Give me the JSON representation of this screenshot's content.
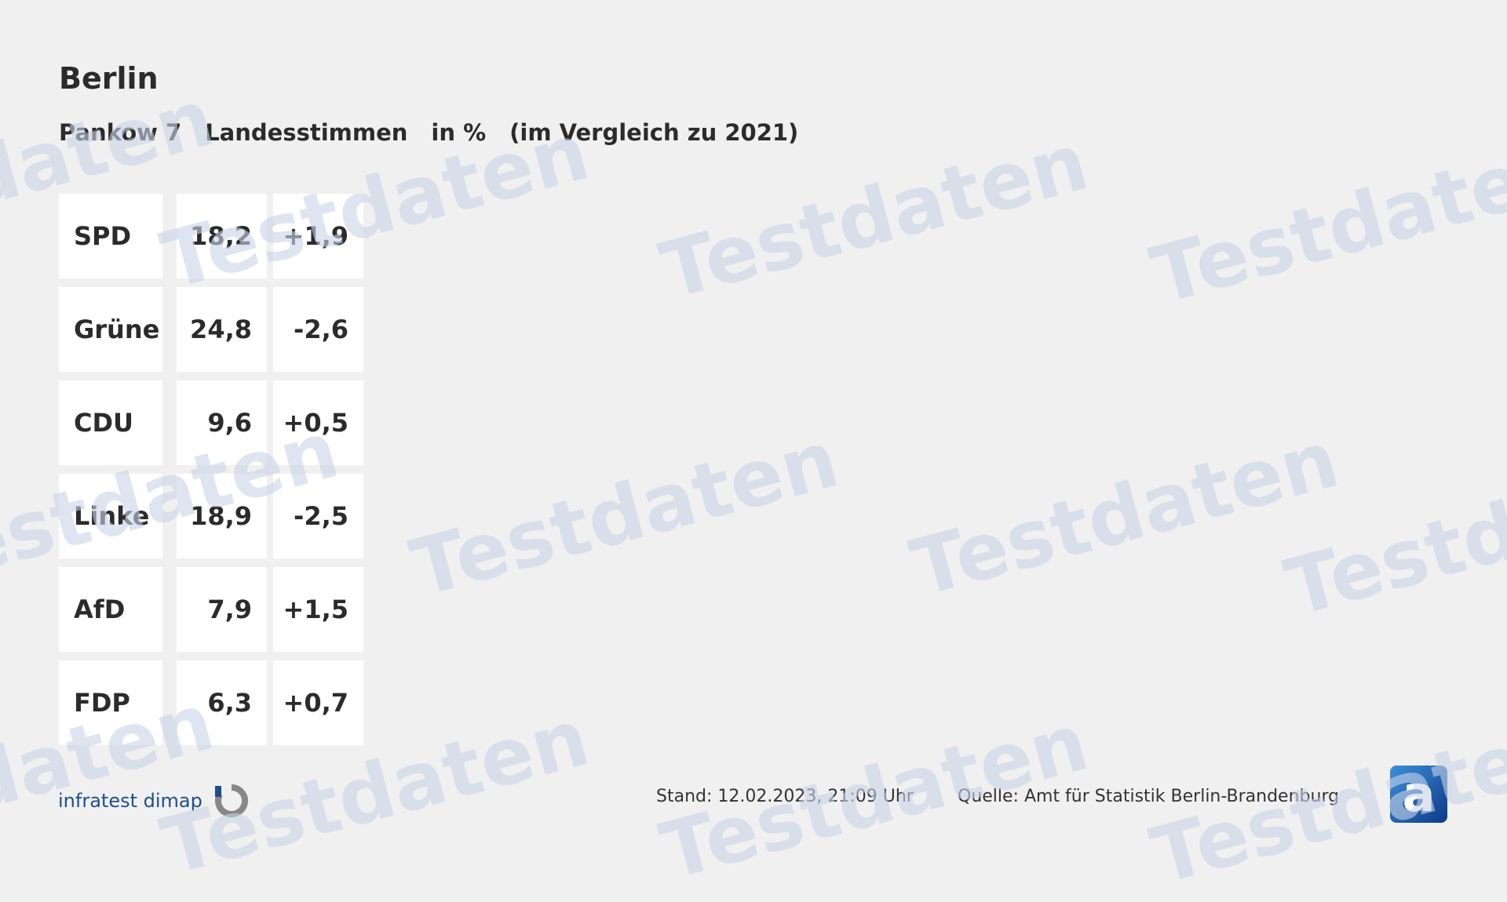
{
  "header": {
    "title": "Berlin",
    "subtitle": [
      "Pankow 7",
      "Landesstimmen",
      "in %",
      "(im Vergleich zu 2021)"
    ]
  },
  "table": {
    "rows": [
      {
        "party": "SPD",
        "value": "18,2",
        "change": "+1,9"
      },
      {
        "party": "Grüne",
        "value": "24,8",
        "change": "-2,6"
      },
      {
        "party": "CDU",
        "value": "9,6",
        "change": "+0,5"
      },
      {
        "party": "Linke",
        "value": "18,9",
        "change": "-2,5"
      },
      {
        "party": "AfD",
        "value": "7,9",
        "change": "+1,5"
      },
      {
        "party": "FDP",
        "value": "6,3",
        "change": "+0,7"
      }
    ]
  },
  "watermark": "Testdaten",
  "footer": {
    "brand": "infratest dimap",
    "stand": "Stand:  12.02.2023, 21:09 Uhr",
    "source": "Quelle: Amt für Statistik Berlin-Brandenburg",
    "logo_letter": "a"
  },
  "colors": {
    "background": "#f0f0f0",
    "cell": "#ffffff",
    "brand": "#1d4f8c"
  }
}
